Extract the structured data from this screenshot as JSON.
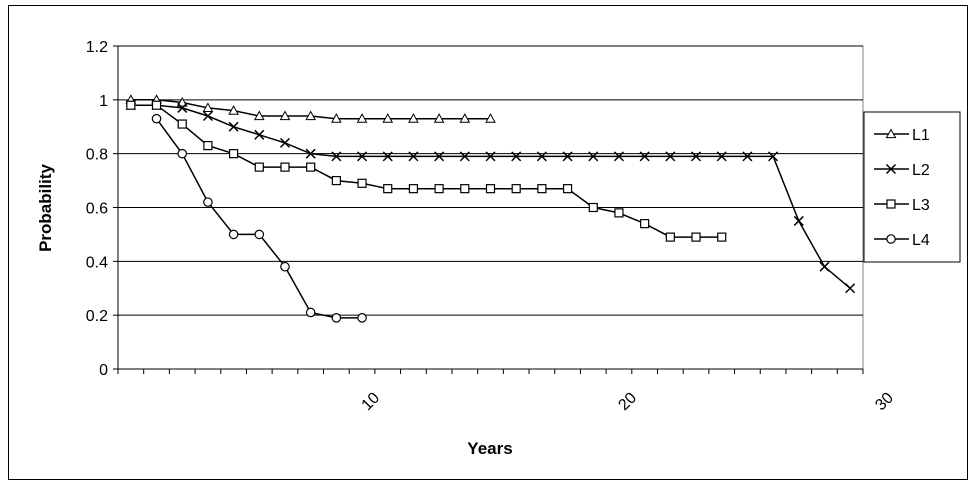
{
  "chart_data": {
    "type": "line",
    "title": "",
    "xlabel": "Years",
    "ylabel": "Probability",
    "ylim": [
      0,
      1.2
    ],
    "yticks": [
      "0",
      "0.2",
      "0.4",
      "0.6",
      "0.8",
      "1",
      "1.2"
    ],
    "xticks": [
      {
        "value": 10,
        "label": "10"
      },
      {
        "value": 20,
        "label": "20"
      },
      {
        "value": 30,
        "label": "30"
      }
    ],
    "xlim": [
      0.5,
      29.5
    ],
    "grid": true,
    "legend_position": "right",
    "series": [
      {
        "name": "L1",
        "marker": "triangle",
        "x": [
          1,
          2,
          3,
          4,
          5,
          6,
          7,
          8,
          9,
          10,
          11,
          12,
          13,
          14,
          15
        ],
        "y": [
          1,
          1,
          0.99,
          0.97,
          0.96,
          0.94,
          0.94,
          0.94,
          0.93,
          0.93,
          0.93,
          0.93,
          0.93,
          0.93,
          0.93
        ]
      },
      {
        "name": "L2",
        "marker": "cross",
        "x": [
          1,
          2,
          3,
          4,
          5,
          6,
          7,
          8,
          9,
          10,
          11,
          12,
          13,
          14,
          15,
          16,
          17,
          18,
          19,
          20,
          21,
          22,
          23,
          24,
          25,
          26,
          27,
          28,
          29
        ],
        "y": [
          0.98,
          0.98,
          0.97,
          0.94,
          0.9,
          0.87,
          0.84,
          0.8,
          0.79,
          0.79,
          0.79,
          0.79,
          0.79,
          0.79,
          0.79,
          0.79,
          0.79,
          0.79,
          0.79,
          0.79,
          0.79,
          0.79,
          0.79,
          0.79,
          0.79,
          0.79,
          0.55,
          0.38,
          0.3
        ]
      },
      {
        "name": "L3",
        "marker": "square",
        "x": [
          1,
          2,
          3,
          4,
          5,
          6,
          7,
          8,
          9,
          10,
          11,
          12,
          13,
          14,
          15,
          16,
          17,
          18,
          19,
          20,
          21,
          22,
          23,
          24
        ],
        "y": [
          0.98,
          0.98,
          0.91,
          0.83,
          0.8,
          0.75,
          0.75,
          0.75,
          0.7,
          0.69,
          0.67,
          0.67,
          0.67,
          0.67,
          0.67,
          0.67,
          0.67,
          0.67,
          0.6,
          0.58,
          0.54,
          0.49,
          0.49,
          0.49
        ]
      },
      {
        "name": "L4",
        "marker": "circle",
        "x": [
          2,
          3,
          4,
          5,
          6,
          7,
          8,
          9,
          10
        ],
        "y": [
          0.93,
          0.8,
          0.62,
          0.5,
          0.5,
          0.38,
          0.21,
          0.19,
          0.19
        ]
      }
    ]
  }
}
